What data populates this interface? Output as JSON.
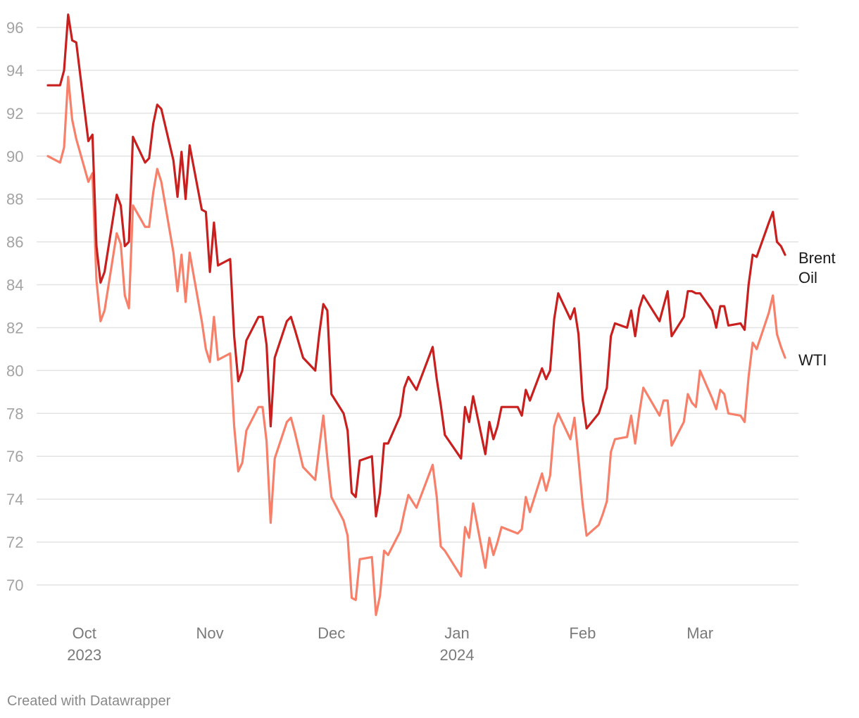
{
  "chart_data": {
    "type": "line",
    "title": "",
    "xlabel": "",
    "ylabel": "",
    "ylim": [
      69,
      96.5
    ],
    "xlim": [
      "2023-09-22",
      "2024-03-22"
    ],
    "grid": true,
    "y_ticks": [
      96,
      94,
      92,
      90,
      88,
      86,
      84,
      82,
      80,
      78,
      76,
      74,
      72,
      70
    ],
    "x_ticks": [
      {
        "date": "2023-10-01",
        "label": "Oct",
        "sublabel": "2023"
      },
      {
        "date": "2023-11-01",
        "label": "Nov",
        "sublabel": ""
      },
      {
        "date": "2023-12-01",
        "label": "Dec",
        "sublabel": ""
      },
      {
        "date": "2024-01-01",
        "label": "Jan",
        "sublabel": "2024"
      },
      {
        "date": "2024-02-01",
        "label": "Feb",
        "sublabel": ""
      },
      {
        "date": "2024-03-01",
        "label": "Mar",
        "sublabel": ""
      }
    ],
    "series": [
      {
        "name": "Brent Oil",
        "label_lines": [
          "Brent",
          "Oil"
        ],
        "color": "#c8201f",
        "points": [
          [
            "2023-09-22",
            93.3
          ],
          [
            "2023-09-25",
            93.3
          ],
          [
            "2023-09-26",
            94.0
          ],
          [
            "2023-09-27",
            96.6
          ],
          [
            "2023-09-28",
            95.4
          ],
          [
            "2023-09-29",
            95.3
          ],
          [
            "2023-10-02",
            90.7
          ],
          [
            "2023-10-03",
            91.0
          ],
          [
            "2023-10-04",
            85.8
          ],
          [
            "2023-10-05",
            84.1
          ],
          [
            "2023-10-06",
            84.6
          ],
          [
            "2023-10-09",
            88.2
          ],
          [
            "2023-10-10",
            87.7
          ],
          [
            "2023-10-11",
            85.8
          ],
          [
            "2023-10-12",
            86.0
          ],
          [
            "2023-10-13",
            90.9
          ],
          [
            "2023-10-16",
            89.7
          ],
          [
            "2023-10-17",
            89.9
          ],
          [
            "2023-10-18",
            91.5
          ],
          [
            "2023-10-19",
            92.4
          ],
          [
            "2023-10-20",
            92.2
          ],
          [
            "2023-10-23",
            89.8
          ],
          [
            "2023-10-24",
            88.1
          ],
          [
            "2023-10-25",
            90.2
          ],
          [
            "2023-10-26",
            88.0
          ],
          [
            "2023-10-27",
            90.5
          ],
          [
            "2023-10-30",
            87.5
          ],
          [
            "2023-10-31",
            87.4
          ],
          [
            "2023-11-01",
            84.6
          ],
          [
            "2023-11-02",
            86.9
          ],
          [
            "2023-11-03",
            84.9
          ],
          [
            "2023-11-06",
            85.2
          ],
          [
            "2023-11-07",
            81.6
          ],
          [
            "2023-11-08",
            79.5
          ],
          [
            "2023-11-09",
            80.0
          ],
          [
            "2023-11-10",
            81.4
          ],
          [
            "2023-11-13",
            82.5
          ],
          [
            "2023-11-14",
            82.5
          ],
          [
            "2023-11-15",
            81.2
          ],
          [
            "2023-11-16",
            77.4
          ],
          [
            "2023-11-17",
            80.6
          ],
          [
            "2023-11-20",
            82.3
          ],
          [
            "2023-11-21",
            82.5
          ],
          [
            "2023-11-22",
            81.9
          ],
          [
            "2023-11-24",
            80.6
          ],
          [
            "2023-11-27",
            80.0
          ],
          [
            "2023-11-28",
            81.7
          ],
          [
            "2023-11-29",
            83.1
          ],
          [
            "2023-11-30",
            82.8
          ],
          [
            "2023-12-01",
            78.9
          ],
          [
            "2023-12-04",
            78.0
          ],
          [
            "2023-12-05",
            77.2
          ],
          [
            "2023-12-06",
            74.3
          ],
          [
            "2023-12-07",
            74.1
          ],
          [
            "2023-12-08",
            75.8
          ],
          [
            "2023-12-11",
            76.0
          ],
          [
            "2023-12-12",
            73.2
          ],
          [
            "2023-12-13",
            74.3
          ],
          [
            "2023-12-14",
            76.6
          ],
          [
            "2023-12-15",
            76.6
          ],
          [
            "2023-12-18",
            77.9
          ],
          [
            "2023-12-19",
            79.2
          ],
          [
            "2023-12-20",
            79.7
          ],
          [
            "2023-12-21",
            79.4
          ],
          [
            "2023-12-22",
            79.1
          ],
          [
            "2023-12-26",
            81.1
          ],
          [
            "2023-12-27",
            79.6
          ],
          [
            "2023-12-28",
            78.4
          ],
          [
            "2023-12-29",
            77.0
          ],
          [
            "2024-01-02",
            75.9
          ],
          [
            "2024-01-03",
            78.3
          ],
          [
            "2024-01-04",
            77.6
          ],
          [
            "2024-01-05",
            78.8
          ],
          [
            "2024-01-08",
            76.1
          ],
          [
            "2024-01-09",
            77.6
          ],
          [
            "2024-01-10",
            76.8
          ],
          [
            "2024-01-11",
            77.4
          ],
          [
            "2024-01-12",
            78.3
          ],
          [
            "2024-01-16",
            78.3
          ],
          [
            "2024-01-17",
            77.9
          ],
          [
            "2024-01-18",
            79.1
          ],
          [
            "2024-01-19",
            78.6
          ],
          [
            "2024-01-22",
            80.1
          ],
          [
            "2024-01-23",
            79.6
          ],
          [
            "2024-01-24",
            80.0
          ],
          [
            "2024-01-25",
            82.4
          ],
          [
            "2024-01-26",
            83.6
          ],
          [
            "2024-01-29",
            82.4
          ],
          [
            "2024-01-30",
            82.9
          ],
          [
            "2024-01-31",
            81.7
          ],
          [
            "2024-02-01",
            78.7
          ],
          [
            "2024-02-02",
            77.3
          ],
          [
            "2024-02-05",
            78.0
          ],
          [
            "2024-02-06",
            78.6
          ],
          [
            "2024-02-07",
            79.2
          ],
          [
            "2024-02-08",
            81.6
          ],
          [
            "2024-02-09",
            82.2
          ],
          [
            "2024-02-12",
            82.0
          ],
          [
            "2024-02-13",
            82.8
          ],
          [
            "2024-02-14",
            81.6
          ],
          [
            "2024-02-15",
            82.9
          ],
          [
            "2024-02-16",
            83.5
          ],
          [
            "2024-02-20",
            82.3
          ],
          [
            "2024-02-21",
            83.0
          ],
          [
            "2024-02-22",
            83.7
          ],
          [
            "2024-02-23",
            81.6
          ],
          [
            "2024-02-26",
            82.5
          ],
          [
            "2024-02-27",
            83.7
          ],
          [
            "2024-02-28",
            83.7
          ],
          [
            "2024-02-29",
            83.6
          ],
          [
            "2024-03-01",
            83.6
          ],
          [
            "2024-03-04",
            82.8
          ],
          [
            "2024-03-05",
            82.0
          ],
          [
            "2024-03-06",
            83.0
          ],
          [
            "2024-03-07",
            83.0
          ],
          [
            "2024-03-08",
            82.1
          ],
          [
            "2024-03-11",
            82.2
          ],
          [
            "2024-03-12",
            81.9
          ],
          [
            "2024-03-13",
            84.0
          ],
          [
            "2024-03-14",
            85.4
          ],
          [
            "2024-03-15",
            85.3
          ],
          [
            "2024-03-18",
            86.9
          ],
          [
            "2024-03-19",
            87.4
          ],
          [
            "2024-03-20",
            86.0
          ],
          [
            "2024-03-21",
            85.8
          ],
          [
            "2024-03-22",
            85.4
          ]
        ]
      },
      {
        "name": "WTI",
        "label_lines": [
          "WTI"
        ],
        "color": "#f7806a",
        "points": [
          [
            "2023-09-22",
            90.0
          ],
          [
            "2023-09-25",
            89.7
          ],
          [
            "2023-09-26",
            90.4
          ],
          [
            "2023-09-27",
            93.7
          ],
          [
            "2023-09-28",
            91.7
          ],
          [
            "2023-09-29",
            90.8
          ],
          [
            "2023-10-02",
            88.8
          ],
          [
            "2023-10-03",
            89.2
          ],
          [
            "2023-10-04",
            84.2
          ],
          [
            "2023-10-05",
            82.3
          ],
          [
            "2023-10-06",
            82.8
          ],
          [
            "2023-10-09",
            86.4
          ],
          [
            "2023-10-10",
            85.9
          ],
          [
            "2023-10-11",
            83.5
          ],
          [
            "2023-10-12",
            82.9
          ],
          [
            "2023-10-13",
            87.7
          ],
          [
            "2023-10-16",
            86.7
          ],
          [
            "2023-10-17",
            86.7
          ],
          [
            "2023-10-18",
            88.3
          ],
          [
            "2023-10-19",
            89.4
          ],
          [
            "2023-10-20",
            88.8
          ],
          [
            "2023-10-23",
            85.5
          ],
          [
            "2023-10-24",
            83.7
          ],
          [
            "2023-10-25",
            85.4
          ],
          [
            "2023-10-26",
            83.2
          ],
          [
            "2023-10-27",
            85.5
          ],
          [
            "2023-10-30",
            82.3
          ],
          [
            "2023-10-31",
            81.0
          ],
          [
            "2023-11-01",
            80.4
          ],
          [
            "2023-11-02",
            82.5
          ],
          [
            "2023-11-03",
            80.5
          ],
          [
            "2023-11-06",
            80.8
          ],
          [
            "2023-11-07",
            77.4
          ],
          [
            "2023-11-08",
            75.3
          ],
          [
            "2023-11-09",
            75.7
          ],
          [
            "2023-11-10",
            77.2
          ],
          [
            "2023-11-13",
            78.3
          ],
          [
            "2023-11-14",
            78.3
          ],
          [
            "2023-11-15",
            76.7
          ],
          [
            "2023-11-16",
            72.9
          ],
          [
            "2023-11-17",
            75.9
          ],
          [
            "2023-11-20",
            77.6
          ],
          [
            "2023-11-21",
            77.8
          ],
          [
            "2023-11-22",
            77.1
          ],
          [
            "2023-11-24",
            75.5
          ],
          [
            "2023-11-27",
            74.9
          ],
          [
            "2023-11-28",
            76.4
          ],
          [
            "2023-11-29",
            77.9
          ],
          [
            "2023-11-30",
            75.9
          ],
          [
            "2023-12-01",
            74.1
          ],
          [
            "2023-12-04",
            73.0
          ],
          [
            "2023-12-05",
            72.3
          ],
          [
            "2023-12-06",
            69.4
          ],
          [
            "2023-12-07",
            69.3
          ],
          [
            "2023-12-08",
            71.2
          ],
          [
            "2023-12-11",
            71.3
          ],
          [
            "2023-12-12",
            68.6
          ],
          [
            "2023-12-13",
            69.5
          ],
          [
            "2023-12-14",
            71.6
          ],
          [
            "2023-12-15",
            71.4
          ],
          [
            "2023-12-18",
            72.5
          ],
          [
            "2023-12-19",
            73.4
          ],
          [
            "2023-12-20",
            74.2
          ],
          [
            "2023-12-21",
            73.9
          ],
          [
            "2023-12-22",
            73.6
          ],
          [
            "2023-12-26",
            75.6
          ],
          [
            "2023-12-27",
            74.1
          ],
          [
            "2023-12-28",
            71.8
          ],
          [
            "2023-12-29",
            71.6
          ],
          [
            "2024-01-02",
            70.4
          ],
          [
            "2024-01-03",
            72.7
          ],
          [
            "2024-01-04",
            72.2
          ],
          [
            "2024-01-05",
            73.8
          ],
          [
            "2024-01-08",
            70.8
          ],
          [
            "2024-01-09",
            72.2
          ],
          [
            "2024-01-10",
            71.4
          ],
          [
            "2024-01-11",
            72.0
          ],
          [
            "2024-01-12",
            72.7
          ],
          [
            "2024-01-16",
            72.4
          ],
          [
            "2024-01-17",
            72.6
          ],
          [
            "2024-01-18",
            74.1
          ],
          [
            "2024-01-19",
            73.4
          ],
          [
            "2024-01-22",
            75.2
          ],
          [
            "2024-01-23",
            74.4
          ],
          [
            "2024-01-24",
            75.1
          ],
          [
            "2024-01-25",
            77.4
          ],
          [
            "2024-01-26",
            78.0
          ],
          [
            "2024-01-29",
            76.8
          ],
          [
            "2024-01-30",
            77.8
          ],
          [
            "2024-01-31",
            75.9
          ],
          [
            "2024-02-01",
            73.8
          ],
          [
            "2024-02-02",
            72.3
          ],
          [
            "2024-02-05",
            72.8
          ],
          [
            "2024-02-06",
            73.3
          ],
          [
            "2024-02-07",
            73.9
          ],
          [
            "2024-02-08",
            76.2
          ],
          [
            "2024-02-09",
            76.8
          ],
          [
            "2024-02-12",
            76.9
          ],
          [
            "2024-02-13",
            77.9
          ],
          [
            "2024-02-14",
            76.6
          ],
          [
            "2024-02-15",
            78.0
          ],
          [
            "2024-02-16",
            79.2
          ],
          [
            "2024-02-20",
            77.9
          ],
          [
            "2024-02-21",
            78.6
          ],
          [
            "2024-02-22",
            78.6
          ],
          [
            "2024-02-23",
            76.5
          ],
          [
            "2024-02-26",
            77.6
          ],
          [
            "2024-02-27",
            78.9
          ],
          [
            "2024-02-28",
            78.5
          ],
          [
            "2024-02-29",
            78.3
          ],
          [
            "2024-03-01",
            80.0
          ],
          [
            "2024-03-04",
            78.7
          ],
          [
            "2024-03-05",
            78.2
          ],
          [
            "2024-03-06",
            79.1
          ],
          [
            "2024-03-07",
            78.9
          ],
          [
            "2024-03-08",
            78.0
          ],
          [
            "2024-03-11",
            77.9
          ],
          [
            "2024-03-12",
            77.6
          ],
          [
            "2024-03-13",
            79.7
          ],
          [
            "2024-03-14",
            81.3
          ],
          [
            "2024-03-15",
            81.0
          ],
          [
            "2024-03-18",
            82.7
          ],
          [
            "2024-03-19",
            83.5
          ],
          [
            "2024-03-20",
            81.7
          ],
          [
            "2024-03-21",
            81.1
          ],
          [
            "2024-03-22",
            80.6
          ]
        ]
      }
    ]
  },
  "footer": {
    "credit": "Created with Datawrapper"
  }
}
